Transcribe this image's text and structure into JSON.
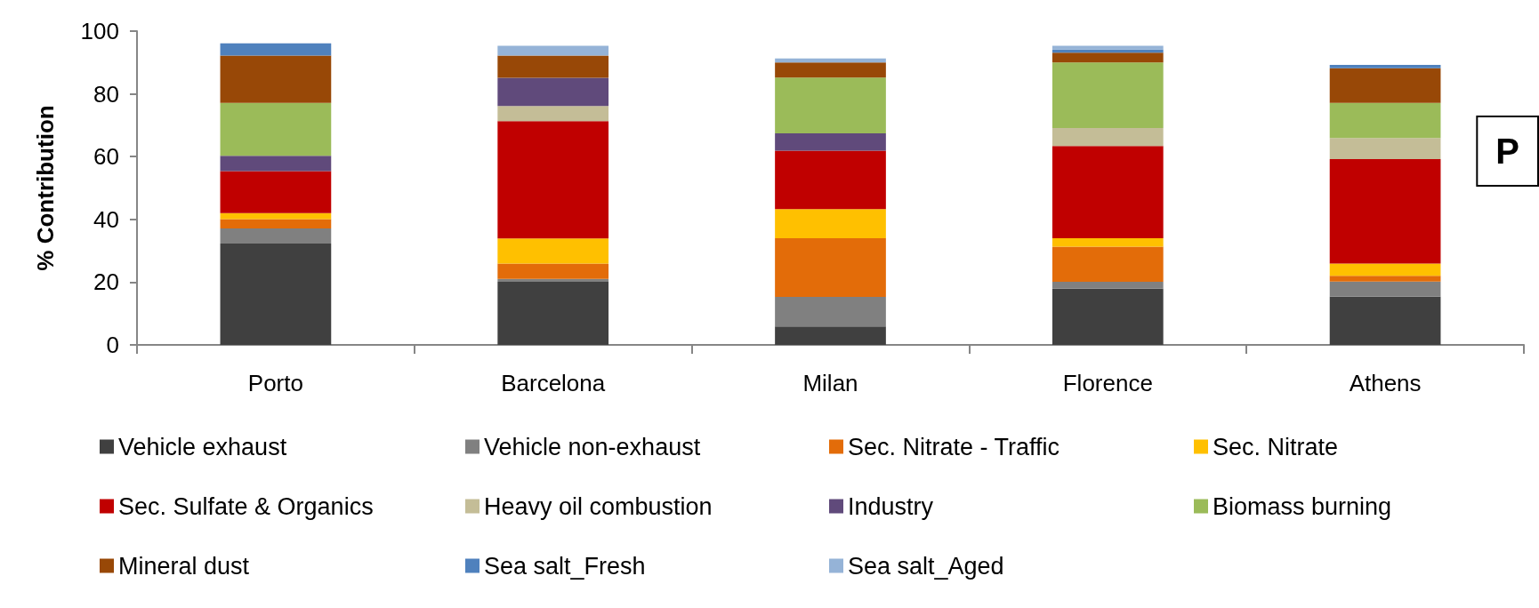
{
  "chart_data": {
    "type": "bar",
    "stacked": true,
    "ylabel": "% Contribution",
    "categories": [
      "Porto",
      "Barcelona",
      "Milan",
      "Florence",
      "Athens"
    ],
    "series": [
      {
        "name": "Vehicle exhaust",
        "color": "#404040",
        "values": [
          32.3,
          20.1,
          5.9,
          17.9,
          15.4
        ]
      },
      {
        "name": "Vehicle non-exhaust",
        "color": "#808080",
        "values": [
          4.8,
          0.9,
          9.4,
          2.2,
          4.8
        ]
      },
      {
        "name": "Sec. Nitrate - Traffic",
        "color": "#e36c09",
        "values": [
          3.0,
          4.9,
          18.7,
          11.2,
          1.8
        ]
      },
      {
        "name": "Sec. Nitrate",
        "color": "#ffc000",
        "values": [
          1.9,
          8.0,
          9.3,
          2.7,
          3.9
        ]
      },
      {
        "name": "Sec. Sulfate & Organics",
        "color": "#c00000",
        "values": [
          13.4,
          37.4,
          18.6,
          29.4,
          33.3
        ]
      },
      {
        "name": "Heavy oil combustion",
        "color": "#c4bd97",
        "values": [
          0,
          4.8,
          0,
          5.7,
          6.7
        ]
      },
      {
        "name": "Industry",
        "color": "#604a7b",
        "values": [
          4.9,
          9.0,
          5.5,
          0,
          0
        ]
      },
      {
        "name": "Biomass burning",
        "color": "#9bbb59",
        "values": [
          16.8,
          0,
          17.8,
          20.9,
          11.2
        ]
      },
      {
        "name": "Mineral dust",
        "color": "#984807",
        "values": [
          15.1,
          7.1,
          4.8,
          3.1,
          11.1
        ]
      },
      {
        "name": "Sea salt_Fresh",
        "color": "#4f81bd",
        "values": [
          3.9,
          0,
          0,
          1.0,
          1.0
        ]
      },
      {
        "name": "Sea salt_Aged",
        "color": "#95b3d7",
        "values": [
          0,
          3.1,
          1.3,
          1.2,
          0
        ]
      }
    ],
    "ylim": [
      0,
      100
    ],
    "yticks": [
      0,
      20,
      40,
      60,
      80,
      100
    ],
    "grid": false,
    "legend": "bottom",
    "annotations": [
      "P"
    ]
  }
}
